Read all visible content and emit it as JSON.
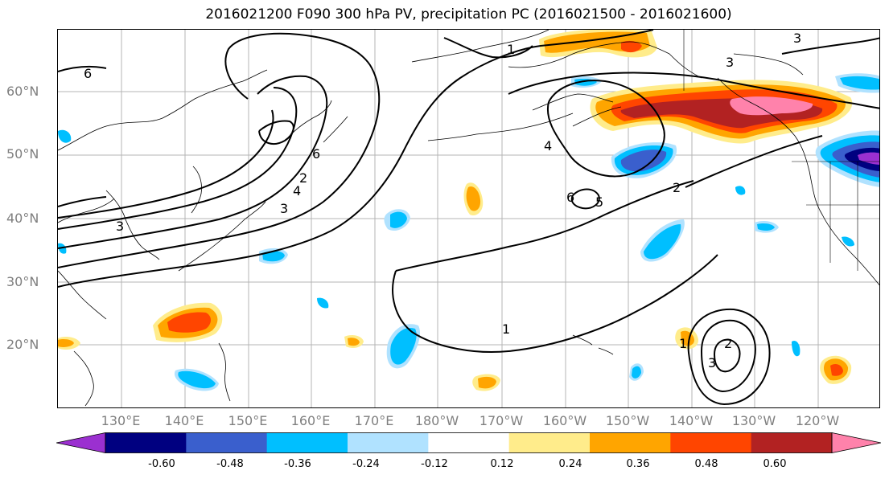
{
  "title": "2016021200 F090 300 hPa PV, precipitation PC (2016021500 - 2016021600)",
  "latitude_labels": [
    "60°N",
    "50°N",
    "40°N",
    "30°N",
    "20°N"
  ],
  "longitude_labels": [
    "130°E",
    "140°E",
    "150°E",
    "160°E",
    "170°E",
    "180°W",
    "170°W",
    "160°W",
    "150°W",
    "140°W",
    "130°W",
    "120°W"
  ],
  "contour_labels": [
    "1",
    "2",
    "3",
    "4",
    "5",
    "6"
  ],
  "colorbar": {
    "ticks": [
      "-0.60",
      "-0.48",
      "-0.36",
      "-0.24",
      "-0.12",
      "0.12",
      "0.24",
      "0.36",
      "0.48",
      "0.60"
    ],
    "colors": [
      "#9b30d0",
      "#000080",
      "#3a5fcd",
      "#00bfff",
      "#b0e2ff",
      "#ffffff",
      "#ffec8b",
      "#ffa500",
      "#ff4500",
      "#b22222",
      "#ff82ab"
    ]
  },
  "colors": {
    "gridline": "#b4b4b4",
    "contour": "#000000",
    "axis_label": "#7f7f7f"
  }
}
